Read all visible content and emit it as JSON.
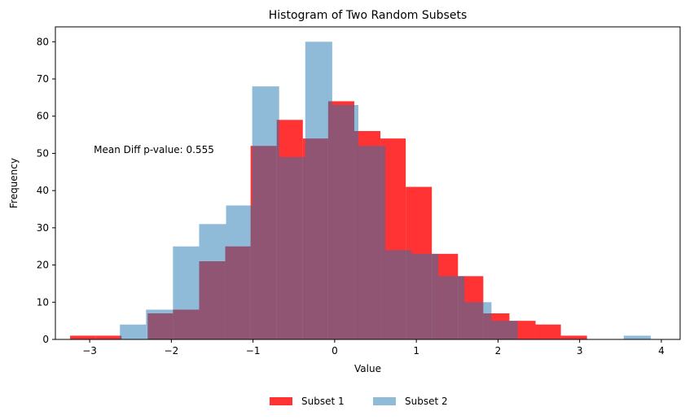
{
  "chart_data": {
    "type": "bar",
    "subtype": "histogram",
    "title": "Histogram of Two Random Subsets",
    "xlabel": "Value",
    "ylabel": "Frequency",
    "xlim": [
      -3.42,
      4.23
    ],
    "ylim": [
      0,
      84
    ],
    "xticks": [
      -3,
      -2,
      -1,
      0,
      1,
      2,
      3,
      4
    ],
    "yticks": [
      0,
      10,
      20,
      30,
      40,
      50,
      60,
      70,
      80
    ],
    "grid": false,
    "legend": "bottom-center",
    "annotation": {
      "text": "Mean Diff p-value: 0.555",
      "x": -2.95,
      "y": 51
    },
    "series": [
      {
        "name": "Subset 1",
        "color": "#ff0000",
        "opacity": 0.8,
        "bin_edges": [
          -3.24,
          -2.93,
          -2.61,
          -2.29,
          -1.98,
          -1.66,
          -1.34,
          -1.03,
          -0.71,
          -0.39,
          -0.08,
          0.24,
          0.56,
          0.87,
          1.19,
          1.51,
          1.82,
          2.14,
          2.46,
          2.77,
          3.09
        ],
        "counts": [
          1,
          1,
          0,
          7,
          8,
          21,
          25,
          52,
          59,
          54,
          64,
          56,
          54,
          41,
          23,
          17,
          7,
          5,
          4,
          1
        ]
      },
      {
        "name": "Subset 2",
        "color": "#1f77b4",
        "opacity": 0.5,
        "bin_edges": [
          -2.63,
          -2.31,
          -1.98,
          -1.66,
          -1.33,
          -1.01,
          -0.68,
          -0.36,
          -0.03,
          0.29,
          0.62,
          0.94,
          1.27,
          1.59,
          1.92,
          2.24,
          2.57,
          2.89,
          3.22,
          3.54,
          3.87
        ],
        "counts": [
          4,
          8,
          25,
          31,
          36,
          68,
          49,
          80,
          63,
          52,
          24,
          23,
          17,
          10,
          5,
          0,
          0,
          0,
          0,
          1
        ]
      }
    ]
  }
}
